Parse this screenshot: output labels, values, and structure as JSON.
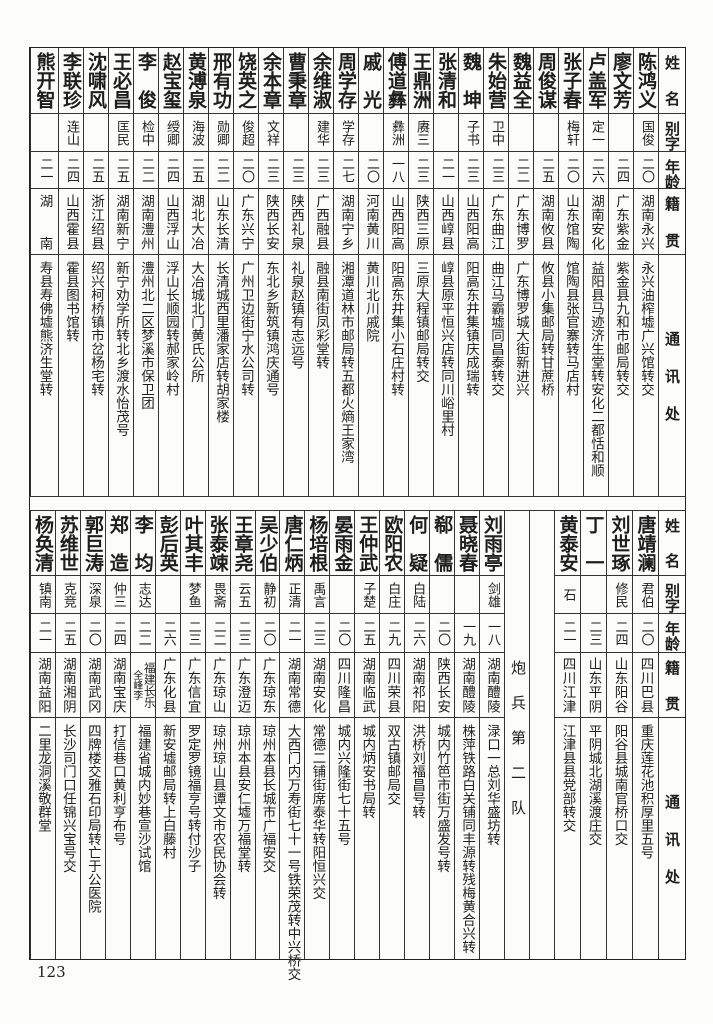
{
  "headers": {
    "name": "姓名",
    "alias": "别字",
    "age": "年龄",
    "native": "籍贯",
    "address": "通讯处"
  },
  "top_table": [
    {
      "name": "陈鸿义",
      "alias": "国俊",
      "age": "二〇",
      "native": "湖南永兴",
      "address": "永兴油榨墟广兴馆转交"
    },
    {
      "name": "廖文芳",
      "alias": "",
      "age": "二四",
      "native": "广东紫金",
      "address": "紫金县九和市邮局转交"
    },
    {
      "name": "卢盖军",
      "alias": "定一",
      "age": "二六",
      "native": "湖南安化",
      "address": "益阳县马迹济生堂转安化二都恬和顺"
    },
    {
      "name": "张子春",
      "alias": "梅轩",
      "age": "二〇",
      "native": "山东馆陶",
      "address": "馆陶县张官寨转马店村"
    },
    {
      "name": "周俊谋",
      "alias": "",
      "age": "二五",
      "native": "湖南攸县",
      "address": "攸县小集邮局转甘蔗桥"
    },
    {
      "name": "魏益全",
      "alias": "",
      "age": "二二",
      "native": "广东博罗",
      "address": "广东博罗城大街新进兴"
    },
    {
      "name": "朱始营",
      "alias": "卫中",
      "age": "二三",
      "native": "广东曲江",
      "address": "曲江马霸墟同昌泰转交"
    },
    {
      "name": "魏坤",
      "alias": "子书",
      "age": "二三",
      "native": "山西阳高",
      "address": "阳高东井集镇庆成瑞转"
    },
    {
      "name": "张清和",
      "alias": "",
      "age": "二一",
      "native": "山西崞县",
      "address": "崞县原平恒兴店转同川峪里村"
    },
    {
      "name": "王鼎洲",
      "alias": "赓三",
      "age": "二三",
      "native": "陕西三原",
      "address": "三原大程镇邮局转交"
    },
    {
      "name": "傅道彝",
      "alias": "彝洲",
      "age": "一八",
      "native": "山西阳高",
      "address": "阳高东井集小石庄村转"
    },
    {
      "name": "戚光",
      "alias": "",
      "age": "二〇",
      "native": "河南黄川",
      "address": "黄川北川戚院"
    },
    {
      "name": "周学存",
      "alias": "学存",
      "age": "二七",
      "native": "湖南宁乡",
      "address": "湘潭道林市邮局转五都火熵王家湾"
    },
    {
      "name": "余维淑",
      "alias": "建华",
      "age": "二三",
      "native": "广西融县",
      "address": "融县南街凤彩堂转"
    },
    {
      "name": "曹秉章",
      "alias": "",
      "age": "二三",
      "native": "陕西礼泉",
      "address": "礼泉赵镇有志远号"
    },
    {
      "name": "余本章",
      "alias": "文祥",
      "age": "二三",
      "native": "陕西长安",
      "address": "东北乡新筑镇鸿庆通号"
    },
    {
      "name": "饶英之",
      "alias": "俊超",
      "age": "二〇",
      "native": "广东兴宁",
      "address": "广州卫边街宁水公司转"
    },
    {
      "name": "邢有功",
      "alias": "勋卿",
      "age": "二二",
      "native": "山东长清",
      "address": "长清城西里潘家店转胡家楼"
    },
    {
      "name": "黄溥泉",
      "alias": "海波",
      "age": "二五",
      "native": "湖北大冶",
      "address": "大冶城北门黄氏公所"
    },
    {
      "name": "赵宝玺",
      "alias": "绶卿",
      "age": "二四",
      "native": "山西浮山",
      "address": "浮山长顺园转郝家岭村"
    },
    {
      "name": "李俊",
      "alias": "检中",
      "age": "二二",
      "native": "湖南澧州",
      "address": "澧州北二区梦溪市保卫团"
    },
    {
      "name": "王必昌",
      "alias": "匡民",
      "age": "二五",
      "native": "湖南新宁",
      "address": "新宁劝学所转北乡渡水怡茂号"
    },
    {
      "name": "沈啸风",
      "alias": "",
      "age": "二五",
      "native": "浙江绍县",
      "address": "绍兴柯桥镇市岔杨宅转"
    },
    {
      "name": "李联珍",
      "alias": "连山",
      "age": "二四",
      "native": "山西霍县",
      "address": "霍县图书馆转"
    },
    {
      "name": "熊开智",
      "alias": "",
      "age": "二一",
      "native": "湖南",
      "address": "寿县寿佛墟熊济生堂转"
    }
  ],
  "bottom_group_a": [
    {
      "name": "唐靖澜",
      "alias": "君伯",
      "age": "二〇",
      "native": "四川巴县",
      "address": "重庆莲花池积厚里五号"
    },
    {
      "name": "刘世琢",
      "alias": "修民",
      "age": "二四",
      "native": "山东阳谷",
      "address": "阳谷县城南官桥口交"
    },
    {
      "name": "丁一",
      "alias": "",
      "age": "二三",
      "native": "山东平阴",
      "address": "平阴城北湖溪渡庄交"
    },
    {
      "name": "黄泰安",
      "alias": "石",
      "age": "二一",
      "native": "四川江津",
      "address": "江津县县党部转交"
    }
  ],
  "section_title": "炮兵第二队",
  "bottom_group_b": [
    {
      "name": "刘雨亭",
      "alias": "剑雄",
      "age": "一八",
      "native": "湖南醴陵",
      "address": "渌口一总刘华盛坊转"
    },
    {
      "name": "聂晓春",
      "alias": "",
      "age": "一九",
      "native": "湖南醴陵",
      "address": "株萍铁路白关铺同丰源转残梅黄合兴转"
    },
    {
      "name": "郗儒",
      "alias": "",
      "age": "二〇",
      "native": "陕西长安",
      "address": "城内竹笆市街万盛发号转"
    },
    {
      "name": "何疑",
      "alias": "白陆",
      "age": "二六",
      "native": "湖南祁阳",
      "address": "洪桥刘福昌号转"
    },
    {
      "name": "欧阳农",
      "alias": "白庄",
      "age": "二九",
      "native": "四川荣县",
      "address": "双古镇邮局交"
    },
    {
      "name": "王仲武",
      "alias": "子楚",
      "age": "二五",
      "native": "湖南临武",
      "address": "城内炳安书局转"
    },
    {
      "name": "晏雨金",
      "alias": "",
      "age": "二〇",
      "native": "四川隆昌",
      "address": "城内兴隆街七十五号"
    },
    {
      "name": "杨培根",
      "alias": "禹言",
      "age": "二三",
      "native": "湖南安化",
      "address": "常德二铺街席泰华转阳恒兴交"
    },
    {
      "name": "唐仁炳",
      "alias": "正清",
      "age": "二一",
      "native": "湖南常德",
      "address": "大西门内万寿街七十一号铁荣茂转中兴桥交"
    },
    {
      "name": "吴少伯",
      "alias": "静初",
      "age": "二〇",
      "native": "广东琼东",
      "address": "琼州本县长城市广福安交"
    },
    {
      "name": "王章尧",
      "alias": "云五",
      "age": "二三",
      "native": "广东澄迈",
      "address": "琼州本县安仁墟万福堂转"
    },
    {
      "name": "张泰竦",
      "alias": "畏斋",
      "age": "二二",
      "native": "广东琼山",
      "address": "琼州琼山县谭文市农民协会转"
    },
    {
      "name": "叶其丰",
      "alias": "梦鱼",
      "age": "二三",
      "native": "广东信宜",
      "address": "罗定罗镜福亨号转付沙子"
    },
    {
      "name": "彭后英",
      "alias": "",
      "age": "二六",
      "native": "广东化县",
      "address": "新安墟邮局转上白藤村"
    },
    {
      "name": "李均",
      "alias": "志达",
      "age": "二二",
      "native": "福建长乐",
      "native_note": "全峰李",
      "address": "福建省城内妙巷宣沙试馆"
    },
    {
      "name": "郑造",
      "alias": "仲三",
      "age": "二四",
      "native": "湖南宝庆",
      "address": "打信巷口黄利亨布号"
    },
    {
      "name": "郭巨涛",
      "alias": "深泉",
      "age": "二〇",
      "native": "湖南武冈",
      "address": "四牌楼交雅石印局转亡于公医院"
    },
    {
      "name": "苏维世",
      "alias": "克竞",
      "age": "二五",
      "native": "湖南湘阴",
      "address": "长沙司门口任锦兴宝号交"
    },
    {
      "name": "杨奂清",
      "alias": "镇南",
      "age": "二一",
      "native": "湖南益阳",
      "address": "二里龙洞溪敬群堂"
    }
  ],
  "page_number": "123"
}
